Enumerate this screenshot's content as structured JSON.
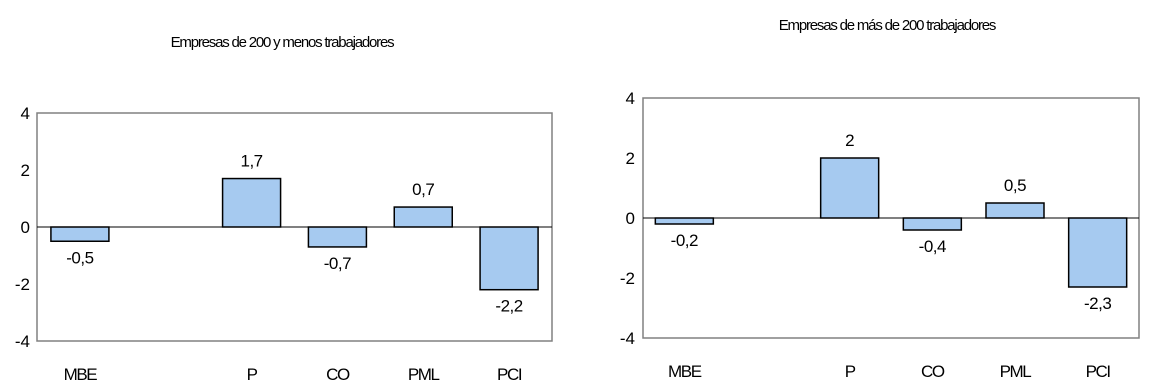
{
  "chart_data": [
    {
      "type": "bar",
      "title": "Empresas de 200 y menos trabajadores",
      "categories": [
        "MBE",
        "",
        "P",
        "CO",
        "PML",
        "PCI"
      ],
      "values": [
        -0.5,
        null,
        1.7,
        -0.7,
        0.7,
        -2.2
      ],
      "data_labels": [
        "-0,5",
        "",
        "1,7",
        "-0,7",
        "0,7",
        "-2,2"
      ],
      "yticks": [
        "4",
        "2",
        "0",
        "-2",
        "-4"
      ],
      "ylim": [
        -4,
        4
      ],
      "bar_color": "#a6caf0",
      "legend": "none",
      "grid": false
    },
    {
      "type": "bar",
      "title": "Empresas de más de 200 trabajadores",
      "categories": [
        "MBE",
        "",
        "P",
        "CO",
        "PML",
        "PCI"
      ],
      "values": [
        -0.2,
        null,
        2,
        -0.4,
        0.5,
        -2.3
      ],
      "data_labels": [
        "-0,2",
        "",
        "2",
        "-0,4",
        "0,5",
        "-2,3"
      ],
      "yticks": [
        "4",
        "2",
        "0",
        "-2",
        "-4"
      ],
      "ylim": [
        -4,
        4
      ],
      "bar_color": "#a6caf0",
      "legend": "none",
      "grid": false
    }
  ]
}
